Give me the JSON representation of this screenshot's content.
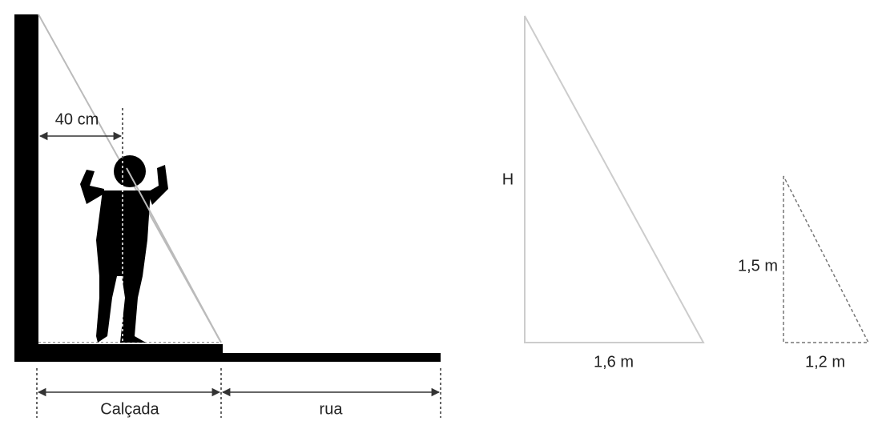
{
  "labels": {
    "distance": "40 cm",
    "sidewalk": "Calçada",
    "street": "rua",
    "height": "H",
    "shadow_base": "1,6 m",
    "person_height": "1,5 m",
    "person_shadow": "1,2 m"
  }
}
